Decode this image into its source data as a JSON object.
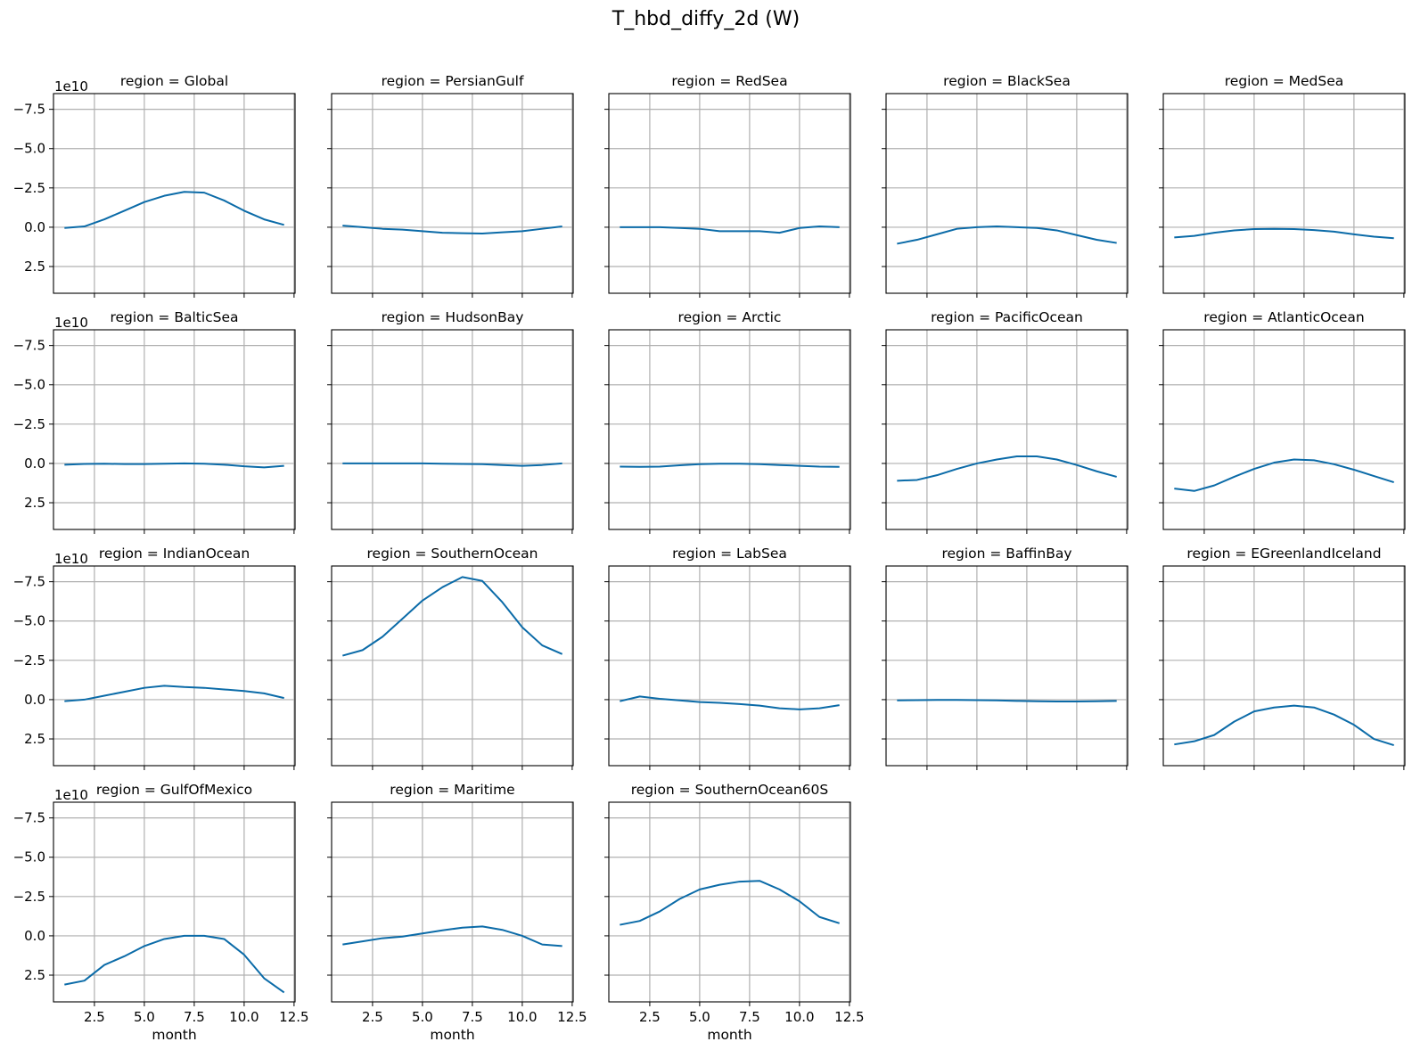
{
  "figure": {
    "title": "T_hbd_diffy_2d (W)",
    "line_color": "#0b6ba8",
    "grid_color": "#b0b0b0"
  },
  "chart_data": {
    "type": "line",
    "layout": "facet-grid",
    "columns": 5,
    "x_label": "month",
    "y_offset_label": "1e10",
    "xlim": [
      0.45,
      12.55
    ],
    "ylim": [
      4.2,
      -8.5
    ],
    "y_axis_inverted": true,
    "x_ticks": [
      2.5,
      5.0,
      7.5,
      10.0,
      12.5
    ],
    "x_tick_labels": [
      "2.5",
      "5.0",
      "7.5",
      "10.0",
      "12.5"
    ],
    "y_ticks": [
      -7.5,
      -5.0,
      -2.5,
      0.0,
      2.5
    ],
    "y_tick_labels": [
      "−7.5",
      "−5.0",
      "−2.5",
      "0.0",
      "2.5"
    ],
    "grid": true,
    "x": [
      1,
      2,
      3,
      4,
      5,
      6,
      7,
      8,
      9,
      10,
      11,
      12
    ],
    "panels": [
      {
        "title": "region = Global",
        "values": [
          0.05,
          -0.05,
          -0.5,
          -1.05,
          -1.6,
          -2.0,
          -2.25,
          -2.2,
          -1.7,
          -1.05,
          -0.5,
          -0.15
        ]
      },
      {
        "title": "region = PersianGulf",
        "values": [
          -0.1,
          0.0,
          0.1,
          0.15,
          0.25,
          0.35,
          0.38,
          0.4,
          0.32,
          0.25,
          0.1,
          -0.05
        ]
      },
      {
        "title": "region = RedSea",
        "values": [
          0.0,
          0.0,
          0.0,
          0.05,
          0.1,
          0.25,
          0.25,
          0.25,
          0.35,
          0.05,
          -0.05,
          0.0
        ]
      },
      {
        "title": "region = BlackSea",
        "values": [
          1.05,
          0.8,
          0.45,
          0.1,
          0.0,
          -0.05,
          0.0,
          0.05,
          0.2,
          0.5,
          0.8,
          1.0
        ]
      },
      {
        "title": "region = MedSea",
        "values": [
          0.65,
          0.55,
          0.35,
          0.2,
          0.12,
          0.1,
          0.12,
          0.18,
          0.28,
          0.45,
          0.6,
          0.7
        ]
      },
      {
        "title": "region = BalticSea",
        "values": [
          0.08,
          0.03,
          0.02,
          0.04,
          0.04,
          0.02,
          0.0,
          0.02,
          0.08,
          0.18,
          0.25,
          0.15
        ]
      },
      {
        "title": "region = HudsonBay",
        "values": [
          0.0,
          0.0,
          0.0,
          0.0,
          0.0,
          0.02,
          0.03,
          0.05,
          0.1,
          0.15,
          0.1,
          0.0
        ]
      },
      {
        "title": "region = Arctic",
        "values": [
          0.2,
          0.22,
          0.2,
          0.12,
          0.05,
          0.02,
          0.02,
          0.05,
          0.1,
          0.15,
          0.2,
          0.22
        ]
      },
      {
        "title": "region = PacificOcean",
        "values": [
          1.1,
          1.05,
          0.75,
          0.35,
          0.0,
          -0.25,
          -0.45,
          -0.45,
          -0.25,
          0.1,
          0.5,
          0.85
        ]
      },
      {
        "title": "region = AtlanticOcean",
        "values": [
          1.6,
          1.75,
          1.4,
          0.85,
          0.35,
          -0.05,
          -0.25,
          -0.2,
          0.05,
          0.4,
          0.8,
          1.2
        ]
      },
      {
        "title": "region = IndianOcean",
        "values": [
          0.1,
          0.0,
          -0.25,
          -0.5,
          -0.75,
          -0.88,
          -0.8,
          -0.75,
          -0.65,
          -0.55,
          -0.4,
          -0.1
        ]
      },
      {
        "title": "region = SouthernOcean",
        "values": [
          -2.8,
          -3.15,
          -4.0,
          -5.15,
          -6.3,
          -7.15,
          -7.8,
          -7.55,
          -6.2,
          -4.6,
          -3.45,
          -2.9
        ]
      },
      {
        "title": "region = LabSea",
        "values": [
          0.1,
          -0.2,
          -0.05,
          0.05,
          0.15,
          0.2,
          0.28,
          0.38,
          0.55,
          0.62,
          0.55,
          0.35
        ]
      },
      {
        "title": "region = BaffinBay",
        "values": [
          0.05,
          0.03,
          0.02,
          0.02,
          0.03,
          0.05,
          0.08,
          0.1,
          0.12,
          0.12,
          0.1,
          0.08
        ]
      },
      {
        "title": "region = EGreenlandIceland",
        "values": [
          2.85,
          2.65,
          2.25,
          1.4,
          0.75,
          0.5,
          0.38,
          0.5,
          0.95,
          1.6,
          2.5,
          2.9
        ]
      },
      {
        "title": "region = GulfOfMexico",
        "values": [
          3.1,
          2.85,
          1.85,
          1.3,
          0.65,
          0.2,
          0.0,
          0.0,
          0.2,
          1.2,
          2.7,
          3.6
        ]
      },
      {
        "title": "region = Maritime",
        "values": [
          0.55,
          0.35,
          0.15,
          0.05,
          -0.15,
          -0.35,
          -0.52,
          -0.6,
          -0.38,
          0.0,
          0.55,
          0.65
        ]
      },
      {
        "title": "region = SouthernOcean60S",
        "values": [
          -0.7,
          -0.95,
          -1.55,
          -2.35,
          -2.95,
          -3.25,
          -3.45,
          -3.5,
          -2.95,
          -2.2,
          -1.2,
          -0.8
        ]
      }
    ]
  }
}
